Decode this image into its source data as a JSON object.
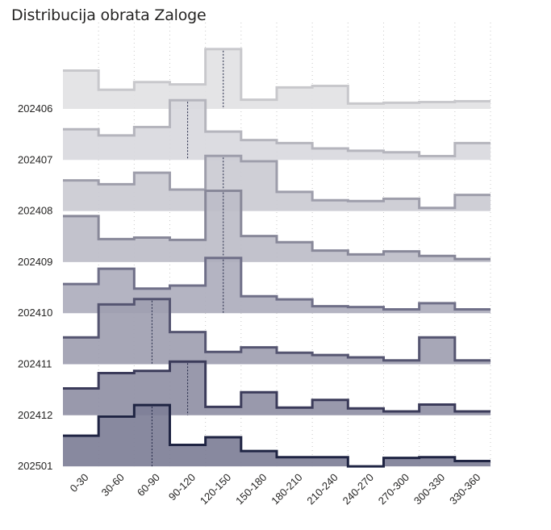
{
  "title": "Distribucija obrata Zaloge",
  "chart_data": {
    "type": "area",
    "style": "ridgeline step chart",
    "title": "Distribucija obrata Zaloge",
    "xlabel": "",
    "ylabel": "",
    "grid": "vertical dotted",
    "categories": [
      "0-30",
      "30-60",
      "60-90",
      "90-120",
      "120-150",
      "150-180",
      "180-210",
      "210-240",
      "240-270",
      "270-300",
      "300-330",
      "330-360"
    ],
    "series": [
      {
        "name": "202406",
        "values": [
          50,
          25,
          35,
          32,
          78,
          12,
          28,
          30,
          7,
          8,
          9,
          10
        ],
        "marker": "120-150",
        "fill": "#e2e2e4",
        "stroke": "#c8c8cc"
      },
      {
        "name": "202407",
        "values": [
          40,
          32,
          43,
          78,
          37,
          26,
          22,
          15,
          12,
          10,
          5,
          22
        ],
        "marker": "90-120",
        "fill": "#d9d9de",
        "stroke": "#b5b5bd"
      },
      {
        "name": "202408",
        "values": [
          40,
          35,
          50,
          28,
          72,
          65,
          25,
          14,
          13,
          16,
          4,
          21
        ],
        "marker": "120-150",
        "fill": "#cbcbd3",
        "stroke": "#9e9eab"
      },
      {
        "name": "202409",
        "values": [
          60,
          30,
          32,
          29,
          93,
          34,
          26,
          15,
          10,
          14,
          8,
          4
        ],
        "marker": "120-150",
        "fill": "#bdbdc8",
        "stroke": "#888899"
      },
      {
        "name": "202410",
        "values": [
          38,
          58,
          32,
          36,
          72,
          22,
          18,
          9,
          8,
          5,
          13,
          5
        ],
        "marker": "120-150",
        "fill": "#aeaebd",
        "stroke": "#6f6f88"
      },
      {
        "name": "202411",
        "values": [
          35,
          78,
          85,
          42,
          16,
          22,
          15,
          12,
          9,
          5,
          35,
          5
        ],
        "marker": "60-90",
        "fill": "#9f9fb1",
        "stroke": "#555571"
      },
      {
        "name": "202412",
        "values": [
          35,
          55,
          58,
          70,
          11,
          30,
          10,
          20,
          9,
          5,
          14,
          5
        ],
        "marker": "90-120",
        "fill": "#9090a5",
        "stroke": "#3b3b5a"
      },
      {
        "name": "202501",
        "values": [
          40,
          65,
          80,
          28,
          38,
          20,
          12,
          12,
          0,
          11,
          12,
          7
        ],
        "marker": "60-90",
        "fill": "#7e7f97",
        "stroke": "#1f2443"
      }
    ]
  }
}
